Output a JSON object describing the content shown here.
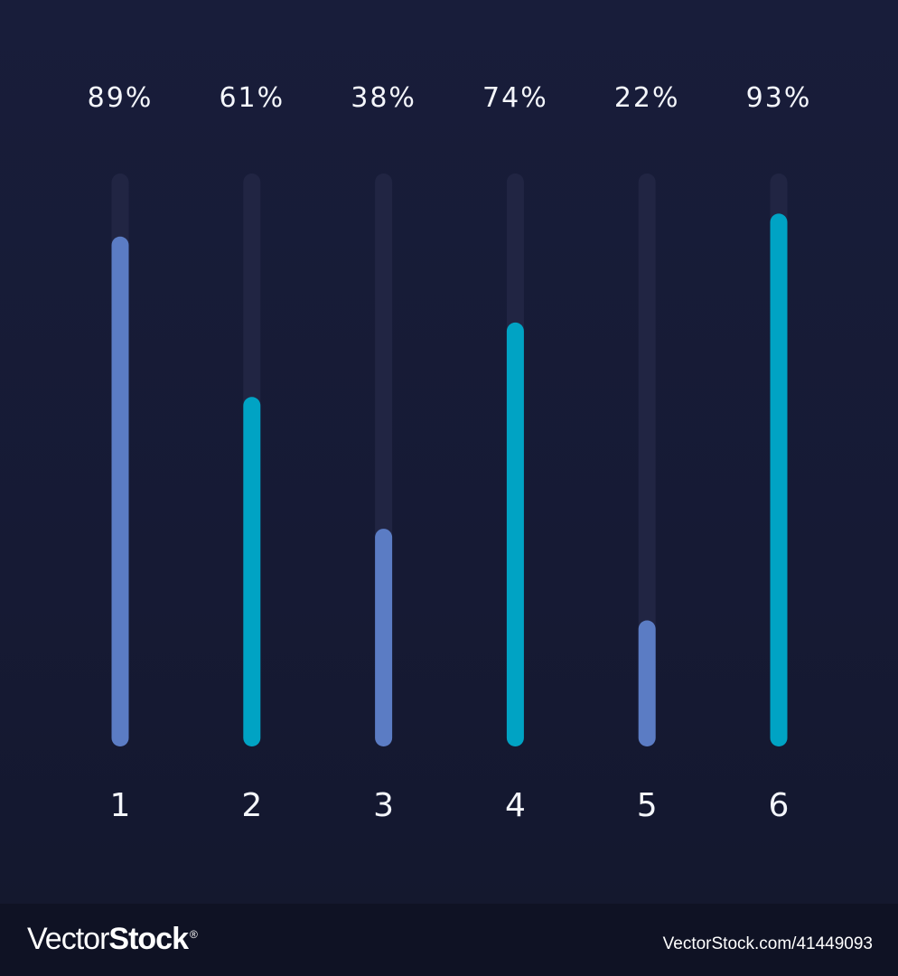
{
  "chart_data": {
    "type": "bar",
    "orientation": "vertical",
    "categories": [
      "1",
      "2",
      "3",
      "4",
      "5",
      "6"
    ],
    "values": [
      89,
      61,
      38,
      74,
      22,
      93
    ],
    "value_labels": [
      "89%",
      "61%",
      "38%",
      "74%",
      "22%",
      "93%"
    ],
    "ylim": [
      0,
      100
    ],
    "grid": false,
    "legend": "none",
    "bar_colors": [
      "#5b7cc4",
      "#00a3c4",
      "#5b7cc4",
      "#00a3c4",
      "#5b7cc4",
      "#00a3c4"
    ],
    "track_color": "#212543",
    "background_color": "#171b36"
  },
  "footer": {
    "brand_regular": "Vector",
    "brand_bold": "Stock",
    "brand_mark": "®",
    "image_id": "VectorStock.com/41449093"
  }
}
